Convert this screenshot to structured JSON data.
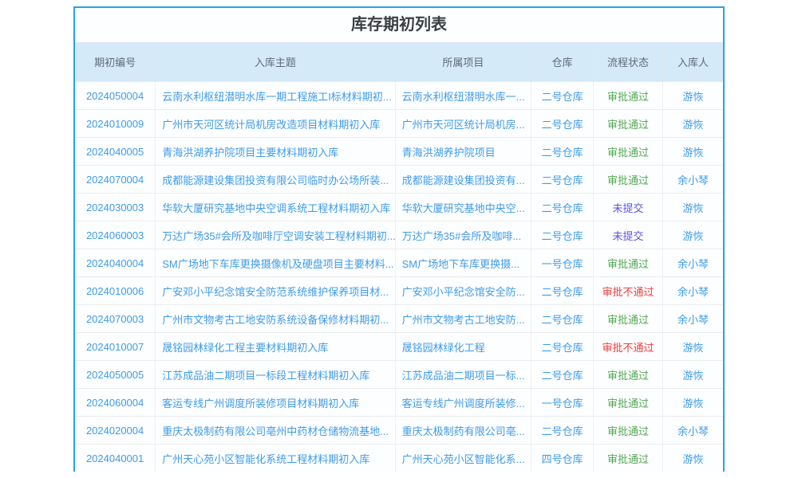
{
  "page": {
    "title": "库存期初列表"
  },
  "colors": {
    "panel_border": "#29A3E3",
    "header_bg": "#D5EAF8",
    "header_text": "#5E6B77",
    "link_blue": "#3E9BE9",
    "status": {
      "审批通过": "#52A852",
      "审批不通过": "#F23C3C",
      "未提交": "#5A55E0"
    }
  },
  "table": {
    "columns": [
      {
        "key": "id",
        "label": "期初编号",
        "width": "12.4%",
        "align": "center"
      },
      {
        "key": "subject",
        "label": "入库主题",
        "width": "37.0%",
        "align": "left"
      },
      {
        "key": "project",
        "label": "所属项目",
        "width": "21.0%",
        "align": "left"
      },
      {
        "key": "warehouse",
        "label": "仓库",
        "width": "9.6%",
        "align": "center"
      },
      {
        "key": "status",
        "label": "流程状态",
        "width": "10.7%",
        "align": "center"
      },
      {
        "key": "person",
        "label": "入库人",
        "width": "9.3%",
        "align": "center"
      }
    ],
    "rows": [
      {
        "id": "2024050004",
        "subject": "云南水利枢纽潜明水库一期工程施工I标材料期初...",
        "project": "云南水利枢纽潜明水库一...",
        "warehouse": "二号仓库",
        "status": "审批通过",
        "person": "游恢"
      },
      {
        "id": "2024010009",
        "subject": "广州市天河区统计局机房改造项目材料期初入库",
        "project": "广州市天河区统计局机房...",
        "warehouse": "二号仓库",
        "status": "审批通过",
        "person": "游恢"
      },
      {
        "id": "2024040005",
        "subject": "青海洪湖养护院项目主要材料期初入库",
        "project": "青海洪湖养护院项目",
        "warehouse": "二号仓库",
        "status": "审批通过",
        "person": "游恢"
      },
      {
        "id": "2024070004",
        "subject": "成都能源建设集团投资有限公司临时办公场所装...",
        "project": "成都能源建设集团投资有...",
        "warehouse": "二号仓库",
        "status": "审批通过",
        "person": "余小琴"
      },
      {
        "id": "2024030003",
        "subject": "华软大厦研究基地中央空调系统工程材料期初入库",
        "project": "华软大厦研究基地中央空...",
        "warehouse": "二号仓库",
        "status": "未提交",
        "person": "游恢"
      },
      {
        "id": "2024060003",
        "subject": "万达广场35#会所及咖啡厅空调安装工程材料期初...",
        "project": "万达广场35#会所及咖啡...",
        "warehouse": "二号仓库",
        "status": "未提交",
        "person": "游恢"
      },
      {
        "id": "2024040004",
        "subject": "SM广场地下车库更换摄像机及硬盘项目主要材料...",
        "project": "SM广场地下车库更换摄...",
        "warehouse": "一号仓库",
        "status": "审批通过",
        "person": "余小琴"
      },
      {
        "id": "2024010006",
        "subject": "广安邓小平纪念馆安全防范系统维护保养项目材...",
        "project": "广安邓小平纪念馆安全防...",
        "warehouse": "二号仓库",
        "status": "审批不通过",
        "person": "余小琴"
      },
      {
        "id": "2024070003",
        "subject": "广州市文物考古工地安防系统设备保修材料期初...",
        "project": "广州市文物考古工地安防...",
        "warehouse": "二号仓库",
        "status": "审批通过",
        "person": "余小琴"
      },
      {
        "id": "2024010007",
        "subject": "晟铭园林绿化工程主要材料期初入库",
        "project": "晟铭园林绿化工程",
        "warehouse": "二号仓库",
        "status": "审批不通过",
        "person": "游恢"
      },
      {
        "id": "2024050005",
        "subject": "江苏成品油二期项目一标段工程材料期初入库",
        "project": "江苏成品油二期项目一标...",
        "warehouse": "二号仓库",
        "status": "审批通过",
        "person": "游恢"
      },
      {
        "id": "2024060004",
        "subject": "客运专线广州调度所装修项目材料期初入库",
        "project": "客运专线广州调度所装修...",
        "warehouse": "一号仓库",
        "status": "审批通过",
        "person": "游恢"
      },
      {
        "id": "2024020004",
        "subject": "重庆太极制药有限公司亳州中药材仓储物流基地...",
        "project": "重庆太极制药有限公司亳...",
        "warehouse": "二号仓库",
        "status": "审批通过",
        "person": "余小琴"
      },
      {
        "id": "2024040001",
        "subject": "广州天心苑小区智能化系统工程材料期初入库",
        "project": "广州天心苑小区智能化系...",
        "warehouse": "四号仓库",
        "status": "审批通过",
        "person": "游恢"
      }
    ]
  }
}
